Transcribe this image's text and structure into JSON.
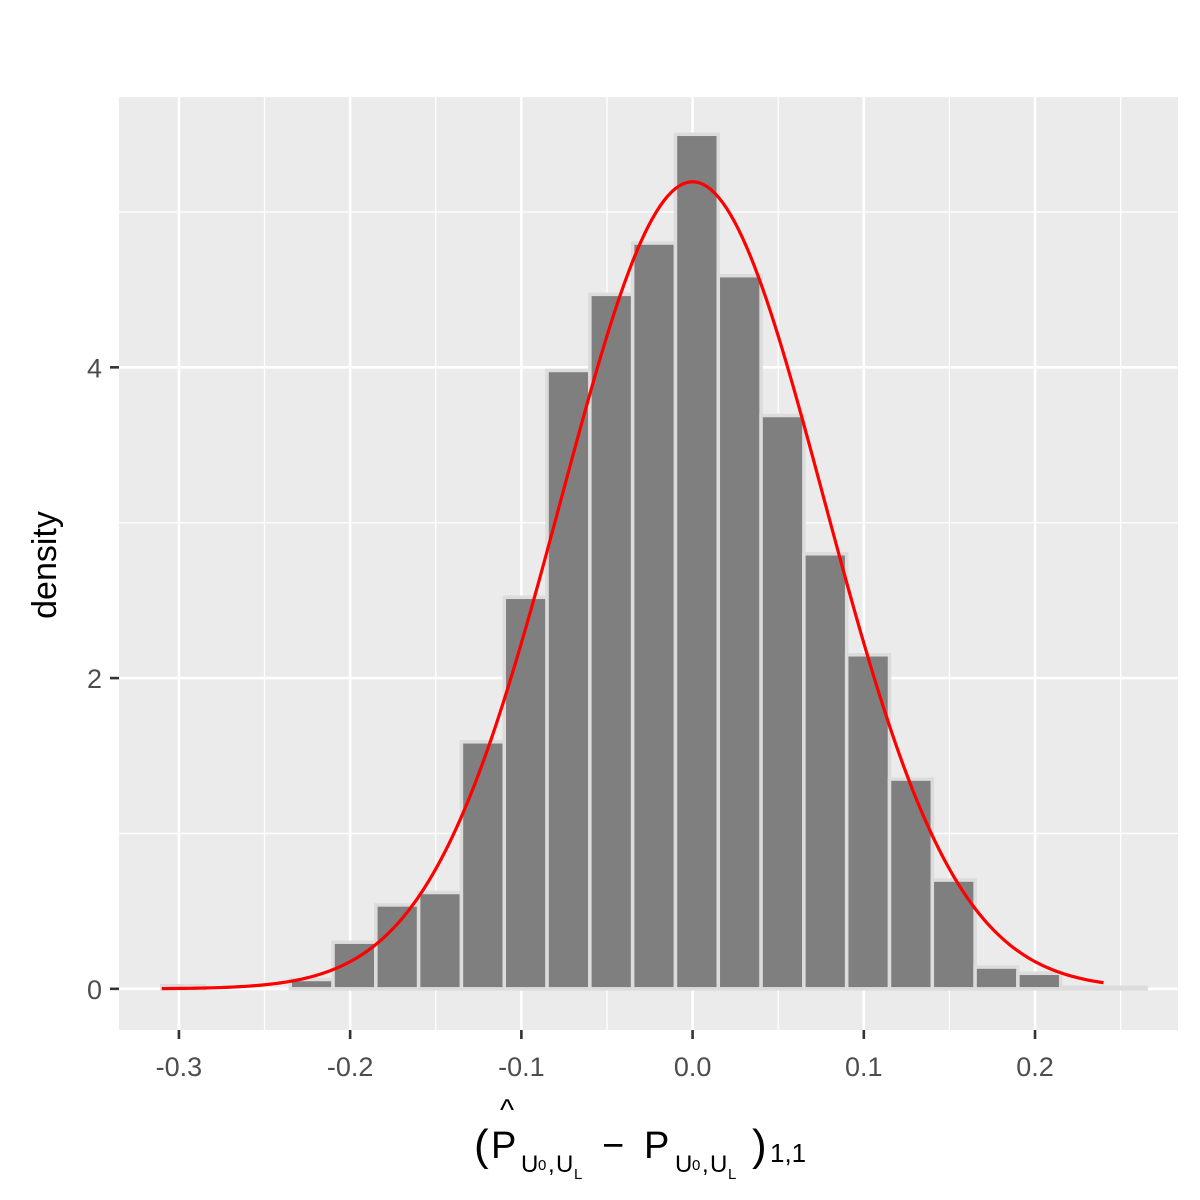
{
  "chart_data": {
    "type": "bar",
    "title": "",
    "xlabel": "(P̂U0,UL − PU0,UL)1,1",
    "xlabel_parts": {
      "open_paren": "(",
      "hat": "^",
      "p_hat": "P",
      "sub1_u": "U",
      "sub1_0": "0",
      "sub1_comma": ",",
      "sub1_u2": "U",
      "sub1_L": "L",
      "minus": "−",
      "p": "P",
      "sub2_u": "U",
      "sub2_0": "0",
      "sub2_comma": ",",
      "sub2_u2": "U",
      "sub2_L": "L",
      "close_paren": ")",
      "outer_sub": "1,1"
    },
    "ylabel": "density",
    "xlim": [
      -0.335,
      0.2835
    ],
    "ylim": [
      -0.265,
      5.74
    ],
    "x_ticks": [
      -0.3,
      -0.2,
      -0.1,
      0.0,
      0.1,
      0.2
    ],
    "x_tick_labels": [
      "-0.3",
      "-0.2",
      "-0.1",
      "0.0",
      "0.1",
      "0.2"
    ],
    "y_ticks": [
      0,
      2,
      4
    ],
    "y_tick_labels": [
      "0",
      "2",
      "4"
    ],
    "grid": true,
    "bin_width": 0.025,
    "bins": [
      {
        "x": -0.2975,
        "density": 0.02
      },
      {
        "x": -0.2225,
        "density": 0.06
      },
      {
        "x": -0.1975,
        "density": 0.3
      },
      {
        "x": -0.1725,
        "density": 0.54
      },
      {
        "x": -0.1475,
        "density": 0.62
      },
      {
        "x": -0.1225,
        "density": 1.59
      },
      {
        "x": -0.0975,
        "density": 2.52
      },
      {
        "x": -0.0725,
        "density": 3.98
      },
      {
        "x": -0.0475,
        "density": 4.47
      },
      {
        "x": -0.0225,
        "density": 4.8
      },
      {
        "x": 0.0025,
        "density": 5.5
      },
      {
        "x": 0.0275,
        "density": 4.59
      },
      {
        "x": 0.0525,
        "density": 3.69
      },
      {
        "x": 0.0775,
        "density": 2.8
      },
      {
        "x": 0.1025,
        "density": 2.15
      },
      {
        "x": 0.1275,
        "density": 1.35
      },
      {
        "x": 0.1525,
        "density": 0.7
      },
      {
        "x": 0.1775,
        "density": 0.14
      },
      {
        "x": 0.2025,
        "density": 0.1
      },
      {
        "x": 0.2275,
        "density": 0.01
      },
      {
        "x": 0.2525,
        "density": 0.01
      }
    ],
    "normal_curve": {
      "mean": 0.0,
      "sd": 0.0768,
      "x_range": [
        -0.31,
        0.24
      ]
    },
    "colors": {
      "panel_bg": "#ebebeb",
      "grid": "#ffffff",
      "bar_fill": "#7f7f7f",
      "bar_outline": "#dcdcdc",
      "curve": "#ff0000",
      "tick_text": "#4d4d4d",
      "tick_mark": "#333333"
    }
  }
}
